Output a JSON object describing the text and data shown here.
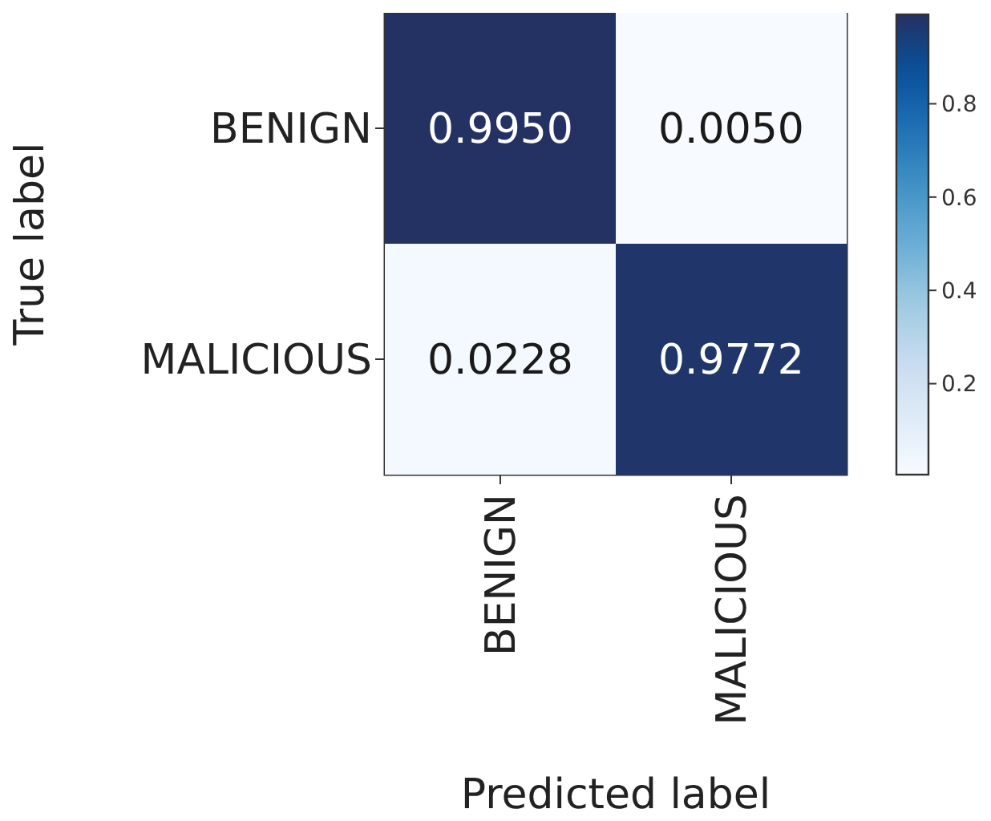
{
  "chart_data": {
    "type": "heatmap",
    "xlabel": "Predicted label",
    "ylabel": "True label",
    "categories": [
      "BENIGN",
      "MALICIOUS"
    ],
    "y_categories": [
      "BENIGN",
      "MALICIOUS"
    ],
    "cells": [
      [
        0.995,
        0.005
      ],
      [
        0.0228,
        0.9772
      ]
    ],
    "cell_labels": [
      [
        "0.9950",
        "0.0050"
      ],
      [
        "0.0228",
        "0.9772"
      ]
    ],
    "clim": [
      0.005,
      0.995
    ],
    "cticks": [
      0.2,
      0.4,
      0.6,
      0.8
    ]
  }
}
